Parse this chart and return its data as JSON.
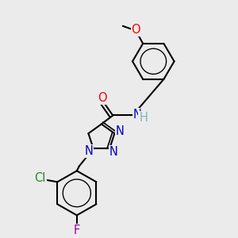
{
  "bg_color": "#ebebeb",
  "bond_color": "#000000",
  "bond_width": 1.5,
  "figsize": [
    3.0,
    3.0
  ],
  "dpi": 100,
  "atom_colors": {
    "O": "#ff0000",
    "N": "#0000cc",
    "H": "#7ab8b8",
    "Cl": "#228b22",
    "F": "#9900aa"
  }
}
